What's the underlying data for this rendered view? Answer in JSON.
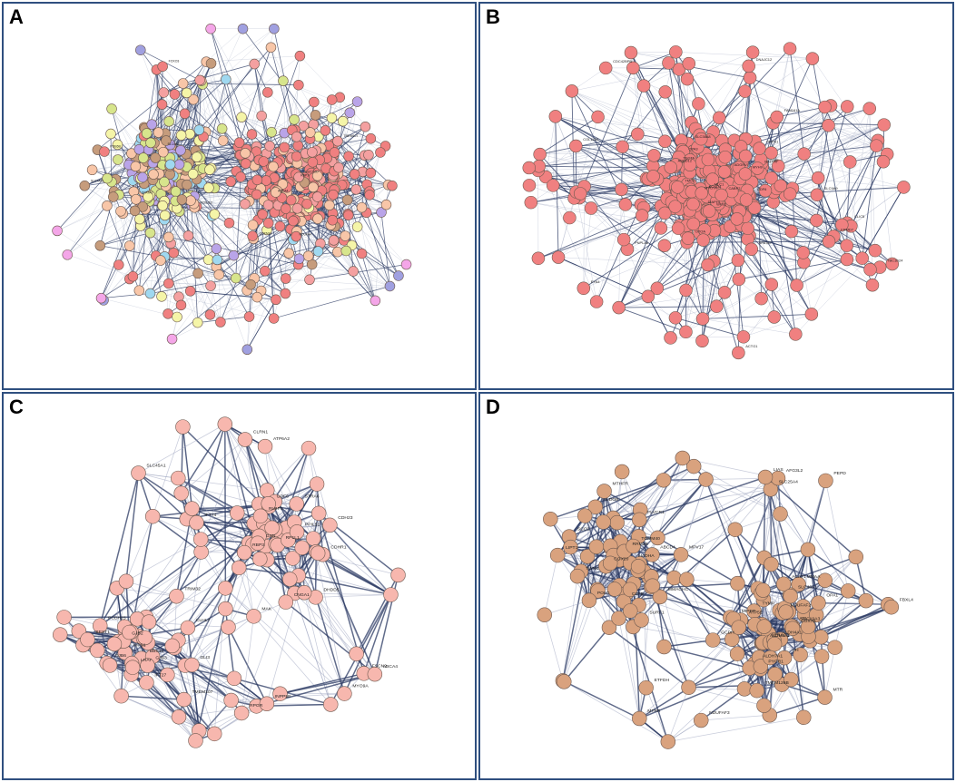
{
  "panels": [
    {
      "letter": "A",
      "palette": [
        "#f08080",
        "#f4a0a0",
        "#f8c6a8",
        "#c69c7c",
        "#d7e58c",
        "#f5f5a8",
        "#b9a4e8",
        "#9fd8f0",
        "#f4a6e8",
        "#a0a0e0"
      ],
      "labels": [
        "SLC7A11",
        "NDUFA4",
        "TMEM107",
        "KCNJ13",
        "SPATA7",
        "CDKN1A",
        "RBP3",
        "ABCA4",
        "PDE6B",
        "GUCY2D",
        "SLC6A6",
        "FOXO3"
      ]
    },
    {
      "letter": "B",
      "palette": [
        "#f08080"
      ],
      "labels": [
        "CLIC5",
        "TBC1D24",
        "DIAPH1",
        "SLC9A9",
        "PNPLA6",
        "CDC42BPB",
        "MYO7A",
        "SLC38A8",
        "FRMD7",
        "ADGRV1",
        "MLC1",
        "GJB2",
        "OPA3",
        "GDF6",
        "NALCN",
        "TMC1",
        "ACTG1",
        "SPATA7",
        "FAM161A",
        "PRPS1",
        "CABP2",
        "DNAJC12",
        "ABHD12",
        "KCNQ4",
        "EYA4",
        "WFS1",
        "MYH9",
        "COL11A2",
        "OTOA",
        "TECTA"
      ]
    },
    {
      "letter": "C",
      "palette": [
        "#f7b7ae"
      ],
      "labels": [
        "ATP6A2",
        "RBP3",
        "RLBP1",
        "STRA6",
        "BEST1",
        "GAN",
        "DHDD5",
        "CNGA1",
        "GDF6",
        "MYO9A",
        "LRAT",
        "ABCA4",
        "CLHL7",
        "FSCN2",
        "TMEM107",
        "CDHR1",
        "CLRN1",
        "WFS1",
        "CDH23",
        "PCDH15",
        "GJB6",
        "GJB2",
        "GJB3",
        "RPGR",
        "SLC45A1",
        "INPP5E",
        "TRIM32",
        "MAK",
        "IFT27",
        "IFT74",
        "GLI3",
        "BBS10",
        "RP1L1",
        "PPIL51"
      ]
    },
    {
      "letter": "D",
      "palette": [
        "#d9a27e"
      ],
      "labels": [
        "PEPD",
        "ALDH4A1",
        "PYCR1",
        "ALDH5A1",
        "GCDH",
        "ALDOB",
        "ACAT1",
        "ALDH7A1",
        "HADHA",
        "ASL",
        "TYMP",
        "RRM2B",
        "SERAC1",
        "CLPB",
        "MPV17",
        "TOMM40",
        "POLG",
        "TWNK",
        "COX20",
        "SLC25A4",
        "OPA1",
        "FBXL4",
        "FH",
        "MTHFR",
        "MTRR",
        "MTR",
        "SLC46A1",
        "ABCD4",
        "FLVCR1",
        "SLC19A3",
        "LIPT1",
        "LIAS",
        "TMEM126B",
        "NDUFAF2",
        "NDUFAF3",
        "COX7B",
        "AFG3L2",
        "ATP5E",
        "SURF1",
        "SCO2",
        "MIPEP",
        "ETFDH",
        "MMACHC",
        "MMAA"
      ]
    }
  ]
}
